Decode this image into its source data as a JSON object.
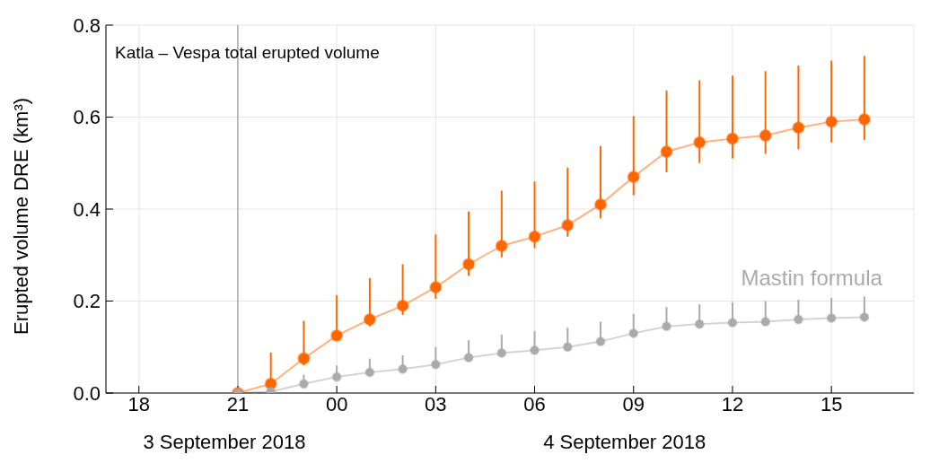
{
  "chart_data": {
    "type": "line",
    "title": "Katla – Vespa total erupted volume",
    "ylabel": "Erupted volume DRE (km³)",
    "x": [
      "2018-09-03T21:00",
      "2018-09-03T22:00",
      "2018-09-03T23:00",
      "2018-09-04T00:00",
      "2018-09-04T01:00",
      "2018-09-04T02:00",
      "2018-09-04T03:00",
      "2018-09-04T04:00",
      "2018-09-04T05:00",
      "2018-09-04T06:00",
      "2018-09-04T07:00",
      "2018-09-04T08:00",
      "2018-09-04T09:00",
      "2018-09-04T10:00",
      "2018-09-04T11:00",
      "2018-09-04T12:00",
      "2018-09-04T13:00",
      "2018-09-04T14:00",
      "2018-09-04T15:00",
      "2018-09-04T16:00"
    ],
    "series": [
      {
        "color": "#ff6600",
        "values": [
          0,
          0.02,
          0.075,
          0.125,
          0.16,
          0.19,
          0.23,
          0.28,
          0.32,
          0.34,
          0.365,
          0.41,
          0.47,
          0.525,
          0.545,
          0.553,
          0.56,
          0.577,
          0.59,
          0.595
        ],
        "errors": [
          null,
          [
            0.01,
            0.088
          ],
          [
            0.06,
            0.157
          ],
          [
            0.115,
            0.213
          ],
          [
            0.145,
            0.25
          ],
          [
            0.17,
            0.28
          ],
          [
            0.205,
            0.345
          ],
          [
            0.255,
            0.395
          ],
          [
            0.295,
            0.44
          ],
          [
            0.315,
            0.46
          ],
          [
            0.34,
            0.49
          ],
          [
            0.38,
            0.537
          ],
          [
            0.43,
            0.602
          ],
          [
            0.48,
            0.658
          ],
          [
            0.5,
            0.68
          ],
          [
            0.51,
            0.69
          ],
          [
            0.52,
            0.7
          ],
          [
            0.53,
            0.712
          ],
          [
            0.545,
            0.723
          ],
          [
            0.55,
            0.733
          ]
        ]
      },
      {
        "name": "Mastin formula",
        "color": "#aaaaaa",
        "values": [
          0,
          0.003,
          0.02,
          0.035,
          0.045,
          0.052,
          0.062,
          0.077,
          0.087,
          0.093,
          0.1,
          0.112,
          0.13,
          0.145,
          0.15,
          0.153,
          0.155,
          0.16,
          0.163,
          0.165
        ],
        "errors": [
          null,
          null,
          [
            0.02,
            0.04
          ],
          [
            0.035,
            0.06
          ],
          [
            0.045,
            0.075
          ],
          [
            0.052,
            0.082
          ],
          [
            0.062,
            0.1
          ],
          [
            0.077,
            0.115
          ],
          [
            0.087,
            0.127
          ],
          [
            0.093,
            0.135
          ],
          [
            0.1,
            0.142
          ],
          [
            0.112,
            0.155
          ],
          [
            0.13,
            0.172
          ],
          [
            0.145,
            0.187
          ],
          [
            0.15,
            0.193
          ],
          [
            0.153,
            0.197
          ],
          [
            0.155,
            0.2
          ],
          [
            0.16,
            0.203
          ],
          [
            0.163,
            0.207
          ],
          [
            0.165,
            0.21
          ]
        ]
      }
    ],
    "xlim": [
      "2018-09-03T17:00",
      "2018-09-04T17:30"
    ],
    "xticks": [
      {
        "value": "2018-09-03T18:00",
        "label": "18"
      },
      {
        "value": "2018-09-03T21:00",
        "label": "21"
      },
      {
        "value": "2018-09-04T00:00",
        "label": "00"
      },
      {
        "value": "2018-09-04T03:00",
        "label": "03"
      },
      {
        "value": "2018-09-04T06:00",
        "label": "06"
      },
      {
        "value": "2018-09-04T09:00",
        "label": "09"
      },
      {
        "value": "2018-09-04T12:00",
        "label": "12"
      },
      {
        "value": "2018-09-04T15:00",
        "label": "15"
      }
    ],
    "ylim": [
      0,
      0.8
    ],
    "yticks": [
      {
        "value": 0,
        "label": "0.0"
      },
      {
        "value": 0.2,
        "label": "0.2"
      },
      {
        "value": 0.4,
        "label": "0.4"
      },
      {
        "value": 0.6,
        "label": "0.6"
      },
      {
        "value": 0.8,
        "label": "0.8"
      }
    ],
    "ref_lines": [
      {
        "axis": "x",
        "value": "2018-09-03T21:00",
        "color": "#888888"
      }
    ],
    "annotations": [
      "3 September 2018",
      "4 September 2018"
    ],
    "grid": true,
    "marker": "circle"
  }
}
